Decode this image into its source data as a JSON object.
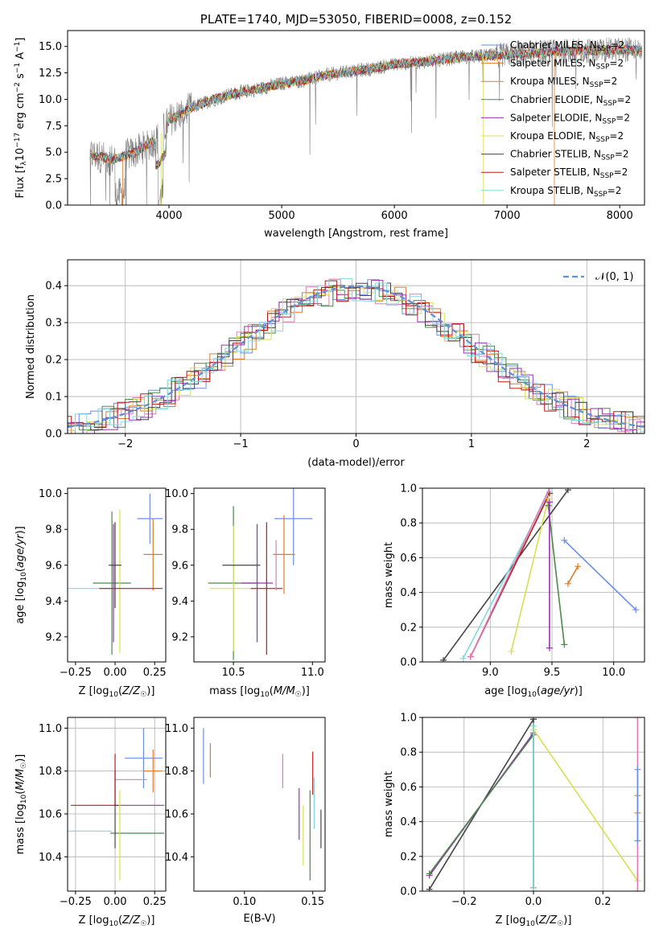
{
  "colors": {
    "chabrier_miles": "#6a8ee8",
    "salpeter_miles": "#e07b2a",
    "kroupa_miles": "#3a9a3a",
    "chabrier_elodie": "#4a8a4a",
    "salpeter_elodie": "#9b30b0",
    "kroupa_elodie": "#d8e050",
    "chabrier_stelib": "#444444",
    "salpeter_stelib": "#c01818",
    "kroupa_stelib": "#80d8e0",
    "pink": "#e07ab8",
    "data": "#808080",
    "normal": "#6090d8",
    "grid": "#b0b0b0"
  },
  "chart_data": [
    {
      "type": "line",
      "title": "PLATE=1740, MJD=53050, FIBERID=0008, z=0.152",
      "xlabel": "wavelength [Angstrom, rest frame]",
      "ylabel": "Flux [f_λ 10^-17 erg cm^-2 s^-1 A^-1]",
      "xlim": [
        3100,
        8220
      ],
      "ylim": [
        0,
        16.5
      ],
      "xticks": [
        "4000",
        "5000",
        "6000",
        "7000",
        "8000"
      ],
      "yticks": [
        "0.0",
        "2.5",
        "5.0",
        "7.5",
        "10.0",
        "12.5",
        "15.0"
      ],
      "legend_position": "top-right",
      "continuum": {
        "x": [
          3300,
          3500,
          3700,
          3900,
          4000,
          4200,
          4400,
          4600,
          4800,
          5000,
          5200,
          5400,
          5600,
          5800,
          6000,
          6200,
          6400,
          6600,
          6800,
          7000,
          7200,
          7400,
          7600,
          7800,
          8000
        ],
        "y": [
          4.8,
          4.3,
          5.0,
          6.3,
          8.0,
          9.2,
          10.0,
          10.6,
          11.0,
          11.5,
          11.8,
          12.3,
          12.6,
          12.9,
          13.3,
          13.5,
          13.7,
          14.0,
          14.1,
          14.2,
          14.3,
          14.5,
          14.6,
          14.6,
          14.7
        ]
      },
      "series": [
        {
          "name": "Chabrier MILES, N_SSP=2",
          "color_key": "chabrier_miles"
        },
        {
          "name": "Salpeter MILES, N_SSP=2",
          "color_key": "salpeter_miles"
        },
        {
          "name": "Kroupa MILES, N_SSP=2",
          "color_key": "salpeter_miles"
        },
        {
          "name": "Chabrier ELODIE, N_SSP=2",
          "color_key": "chabrier_elodie"
        },
        {
          "name": "Salpeter ELODIE, N_SSP=2",
          "color_key": "salpeter_elodie"
        },
        {
          "name": "Kroupa ELODIE, N_SSP=2",
          "color_key": "kroupa_elodie"
        },
        {
          "name": "Chabrier STELIB, N_SSP=2",
          "color_key": "chabrier_stelib"
        },
        {
          "name": "Salpeter STELIB, N_SSP=2",
          "color_key": "salpeter_stelib"
        },
        {
          "name": "Kroupa STELIB, N_SSP=2",
          "color_key": "kroupa_stelib"
        }
      ]
    },
    {
      "type": "bar",
      "xlabel": "(data-model)/error",
      "ylabel": "Normed distribution",
      "xlim": [
        -2.5,
        2.5
      ],
      "ylim": [
        0,
        0.47
      ],
      "xticks": [
        "−2",
        "−1",
        "0",
        "1",
        "2"
      ],
      "yticks": [
        "0.0",
        "0.1",
        "0.2",
        "0.3",
        "0.4"
      ],
      "legend": "𝒩(0, 1)",
      "legend_position": "top-right",
      "grid": true
    },
    {
      "type": "scatter",
      "xlabel": "Z [log10(Z/Z☉)]",
      "ylabel": "age [log10(age/yr)]",
      "xlim": [
        -0.3,
        0.32
      ],
      "ylim": [
        9.06,
        10.03
      ],
      "xticks": [
        "−0.25",
        "0.00",
        "0.25"
      ],
      "yticks": [
        "9.2",
        "9.4",
        "9.6",
        "9.8",
        "10.0"
      ],
      "points": [
        {
          "x": 0.22,
          "y": 9.86,
          "xerr": 0.08,
          "yerr": 0.14,
          "color_key": "chabrier_miles"
        },
        {
          "x": 0.24,
          "y": 9.66,
          "xerr": 0.06,
          "yerr": 0.2,
          "color_key": "salpeter_miles"
        },
        {
          "x": -0.18,
          "y": 9.47,
          "xerr": 0.15,
          "yerr": 0.0,
          "color_key": "kroupa_stelib"
        },
        {
          "x": -0.02,
          "y": 9.5,
          "xerr": 0.12,
          "yerr": 0.4,
          "color_key": "chabrier_elodie"
        },
        {
          "x": -0.01,
          "y": 9.5,
          "xerr": 0.0,
          "yerr": 0.33,
          "color_key": "salpeter_elodie"
        },
        {
          "x": 0.03,
          "y": 9.51,
          "xerr": 0.0,
          "yerr": 0.4,
          "color_key": "kroupa_elodie"
        },
        {
          "x": 0.0,
          "y": 9.6,
          "xerr": 0.04,
          "yerr": 0.24,
          "color_key": "chabrier_stelib"
        },
        {
          "x": 0.1,
          "y": 9.47,
          "xerr": 0.2,
          "yerr": 0.0,
          "color_key": "salpeter_stelib"
        }
      ]
    },
    {
      "type": "scatter",
      "xlabel": "mass [log10(M/M☉)]",
      "ylabel": "",
      "xlim": [
        10.25,
        11.08
      ],
      "ylim": [
        9.06,
        10.03
      ],
      "xticks": [
        "10.5",
        "11.0"
      ],
      "yticks": [
        "9.2",
        "9.4",
        "9.6",
        "9.8",
        "10.0"
      ],
      "points": [
        {
          "x": 10.88,
          "y": 9.86,
          "xerr": 0.12,
          "yerr": 0.26,
          "color_key": "chabrier_miles"
        },
        {
          "x": 10.82,
          "y": 9.66,
          "xerr": 0.07,
          "yerr": 0.22,
          "color_key": "salpeter_miles"
        },
        {
          "x": 10.5,
          "y": 9.5,
          "xerr": 0.16,
          "yerr": 0.43,
          "color_key": "chabrier_elodie"
        },
        {
          "x": 10.65,
          "y": 9.5,
          "xerr": 0.1,
          "yerr": 0.33,
          "color_key": "salpeter_elodie"
        },
        {
          "x": 10.5,
          "y": 9.47,
          "xerr": 0.15,
          "yerr": 0.35,
          "color_key": "kroupa_elodie"
        },
        {
          "x": 10.55,
          "y": 9.6,
          "xerr": 0.12,
          "yerr": 0.0,
          "color_key": "chabrier_stelib"
        },
        {
          "x": 10.71,
          "y": 9.47,
          "xerr": 0.1,
          "yerr": 0.37,
          "color_key": "salpeter_stelib"
        },
        {
          "x": 10.77,
          "y": 9.6,
          "xerr": 0.0,
          "yerr": 0.14,
          "color_key": "pink"
        }
      ]
    },
    {
      "type": "line",
      "xlabel": "age [log10(age/yr)]",
      "ylabel": "mass weight",
      "xlim": [
        8.45,
        10.25
      ],
      "ylim": [
        0,
        1
      ],
      "xticks": [
        "9.0",
        "9.5",
        "10.0"
      ],
      "yticks": [
        "0.0",
        "0.2",
        "0.4",
        "0.6",
        "0.8",
        "1.0"
      ],
      "grid": true,
      "series": [
        {
          "color_key": "chabrier_miles",
          "x": [
            9.6,
            10.18
          ],
          "y": [
            0.7,
            0.3
          ]
        },
        {
          "color_key": "salpeter_miles",
          "x": [
            9.63,
            9.71
          ],
          "y": [
            0.45,
            0.55
          ]
        },
        {
          "color_key": "chabrier_stelib",
          "x": [
            8.62,
            9.63
          ],
          "y": [
            0.01,
            0.99
          ]
        },
        {
          "color_key": "kroupa_stelib",
          "x": [
            8.78,
            9.48
          ],
          "y": [
            0.02,
            0.98
          ]
        },
        {
          "color_key": "salpeter_stelib",
          "x": [
            8.84,
            9.48
          ],
          "y": [
            0.03,
            0.97
          ]
        },
        {
          "color_key": "pink",
          "x": [
            8.84,
            9.48
          ],
          "y": [
            0.03,
            1.0
          ]
        },
        {
          "color_key": "kroupa_elodie",
          "x": [
            9.17,
            9.47
          ],
          "y": [
            0.06,
            0.94
          ]
        },
        {
          "color_key": "chabrier_elodie",
          "x": [
            9.47,
            9.6
          ],
          "y": [
            0.9,
            0.1
          ]
        },
        {
          "color_key": "salpeter_elodie",
          "x": [
            9.48,
            9.48
          ],
          "y": [
            0.92,
            0.08
          ]
        }
      ]
    },
    {
      "type": "scatter",
      "xlabel": "Z [log10(Z/Z☉)]",
      "ylabel": "mass [log10(M/M☉)]",
      "xlim": [
        -0.3,
        0.32
      ],
      "ylim": [
        10.24,
        11.05
      ],
      "xticks": [
        "−0.25",
        "0.00",
        "0.25"
      ],
      "yticks": [
        "10.4",
        "10.6",
        "10.8",
        "11.0"
      ],
      "grid": true,
      "points": [
        {
          "x": 0.18,
          "y": 10.86,
          "xerr": 0.12,
          "yerr": 0.14,
          "color_key": "chabrier_miles"
        },
        {
          "x": 0.24,
          "y": 10.8,
          "xerr": 0.06,
          "yerr": 0.1,
          "color_key": "salpeter_miles"
        },
        {
          "x": -0.16,
          "y": 10.52,
          "xerr": 0.14,
          "yerr": 0.0,
          "color_key": "kroupa_stelib"
        },
        {
          "x": 0.14,
          "y": 10.51,
          "xerr": 0.17,
          "yerr": 0.0,
          "color_key": "chabrier_elodie"
        },
        {
          "x": 0.15,
          "y": 10.64,
          "xerr": 0.16,
          "yerr": 0.0,
          "color_key": "salpeter_elodie"
        },
        {
          "x": 0.03,
          "y": 10.5,
          "xerr": 0.0,
          "yerr": 0.21,
          "color_key": "kroupa_elodie"
        },
        {
          "x": 0.0,
          "y": 10.62,
          "xerr": 0.0,
          "yerr": 0.18,
          "color_key": "chabrier_stelib"
        },
        {
          "x": -0.13,
          "y": 10.64,
          "xerr": 0.15,
          "yerr": 0.0,
          "color_key": "salpeter_stelib"
        },
        {
          "x": 0.1,
          "y": 10.76,
          "xerr": 0.1,
          "yerr": 0.0,
          "color_key": "pink"
        },
        {
          "x": 0.0,
          "y": 10.76,
          "xerr": 0.0,
          "yerr": 0.12,
          "color_key": "salpeter_stelib"
        }
      ]
    },
    {
      "type": "scatter",
      "xlabel": "E(B-V)",
      "ylabel": "",
      "xlim": [
        0.063,
        0.159
      ],
      "ylim": [
        10.24,
        11.05
      ],
      "xticks": [
        "0.10",
        "0.15"
      ],
      "yticks": [
        "10.4",
        "10.6",
        "10.8",
        "11.0"
      ],
      "points": [
        {
          "x": 0.07,
          "y": 10.87,
          "yerr": 0.13,
          "color_key": "chabrier_miles"
        },
        {
          "x": 0.075,
          "y": 10.85,
          "yerr": 0.08,
          "color_key": "salpeter_miles"
        },
        {
          "x": 0.128,
          "y": 10.8,
          "yerr": 0.08,
          "color_key": "pink"
        },
        {
          "x": 0.14,
          "y": 10.6,
          "yerr": 0.12,
          "color_key": "salpeter_elodie"
        },
        {
          "x": 0.143,
          "y": 10.5,
          "yerr": 0.14,
          "color_key": "kroupa_elodie"
        },
        {
          "x": 0.148,
          "y": 10.5,
          "yerr": 0.21,
          "color_key": "chabrier_elodie"
        },
        {
          "x": 0.15,
          "y": 10.79,
          "yerr": 0.1,
          "color_key": "salpeter_stelib"
        },
        {
          "x": 0.151,
          "y": 10.65,
          "yerr": 0.12,
          "color_key": "kroupa_stelib"
        },
        {
          "x": 0.156,
          "y": 10.53,
          "yerr": 0.09,
          "color_key": "chabrier_stelib"
        }
      ]
    },
    {
      "type": "line",
      "xlabel": "Z [log10(Z/Z☉)]",
      "ylabel": "mass weight",
      "xlim": [
        -0.32,
        0.32
      ],
      "ylim": [
        0,
        1
      ],
      "xticks": [
        "−0.2",
        "0.0",
        "0.2"
      ],
      "yticks": [
        "0.0",
        "0.2",
        "0.4",
        "0.6",
        "0.8",
        "1.0"
      ],
      "grid": true,
      "series": [
        {
          "color_key": "chabrier_stelib",
          "x": [
            -0.3,
            0.0
          ],
          "y": [
            0.01,
            0.99
          ]
        },
        {
          "color_key": "chabrier_stelib",
          "x": [
            0.0,
            0.0
          ],
          "y": [
            0.99,
            0.02
          ]
        },
        {
          "color_key": "salpeter_elodie",
          "x": [
            -0.3,
            0.0
          ],
          "y": [
            0.09,
            0.91
          ]
        },
        {
          "color_key": "chabrier_elodie",
          "x": [
            -0.3,
            0.0
          ],
          "y": [
            0.1,
            0.9
          ]
        },
        {
          "color_key": "kroupa_elodie",
          "x": [
            0.0,
            0.3
          ],
          "y": [
            0.93,
            0.06
          ]
        },
        {
          "color_key": "kroupa_stelib",
          "x": [
            0.0,
            0.0
          ],
          "y": [
            0.95,
            0.02
          ]
        },
        {
          "color_key": "pink",
          "x": [
            0.3,
            0.3
          ],
          "y": [
            1.0,
            0.0
          ]
        },
        {
          "color_key": "salpeter_miles",
          "x": [
            0.3,
            0.3
          ],
          "y": [
            0.55,
            0.45
          ]
        },
        {
          "color_key": "chabrier_miles",
          "x": [
            0.3,
            0.3
          ],
          "y": [
            0.7,
            0.29
          ]
        }
      ]
    }
  ]
}
